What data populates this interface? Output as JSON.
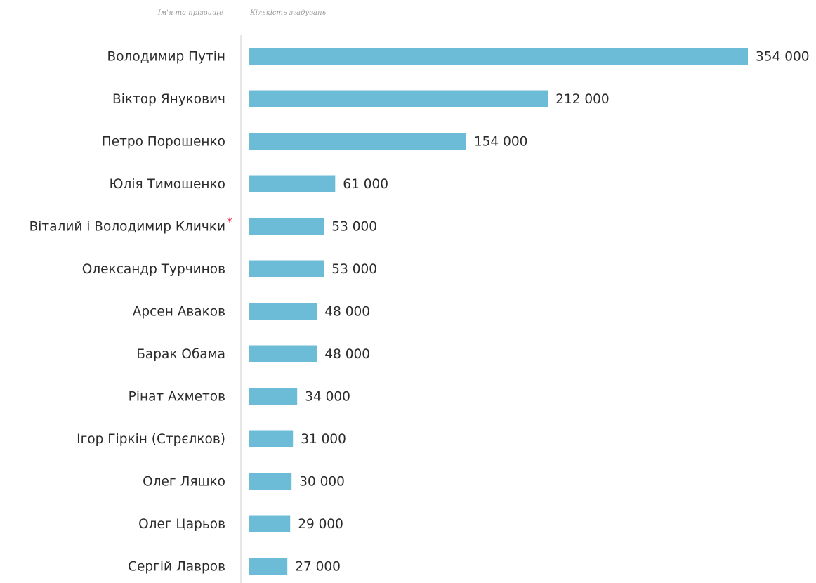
{
  "chart_data": {
    "type": "bar",
    "orientation": "horizontal",
    "category_header": "Ім'я та прізвище",
    "value_header": "Кількість згадувань",
    "categories": [
      "Володимир Путін",
      "Віктор Янукович",
      "Петро Порошенко",
      "Юлія Тимошенко",
      "Віталий і Володимир Клички",
      "Олександр Турчинов",
      "Арсен Аваков",
      "Барак Обама",
      "Рінат Ахметов",
      "Ігор Гіркін (Стрєлков)",
      "Олег Ляшко",
      "Олег Царьов",
      "Сергій Лавров"
    ],
    "values": [
      354000,
      212000,
      154000,
      61000,
      53000,
      53000,
      48000,
      48000,
      34000,
      31000,
      30000,
      29000,
      27000
    ],
    "value_labels": [
      "354 000",
      "212 000",
      "154 000",
      "61 000",
      "53 000",
      "53 000",
      "48 000",
      "48 000",
      "34 000",
      "31 000",
      "30 000",
      "29 000",
      "27 000"
    ],
    "footnote_marker": "*",
    "footnote_index": 4,
    "xlim": [
      0,
      354000
    ],
    "grid": false,
    "legend": "none",
    "colors": {
      "bar": "#6cbcd8",
      "axis": "#cfcfcf",
      "footnote_marker": "#e8193c",
      "label": "#2b2b2b",
      "header": "#9a9a9a"
    }
  }
}
